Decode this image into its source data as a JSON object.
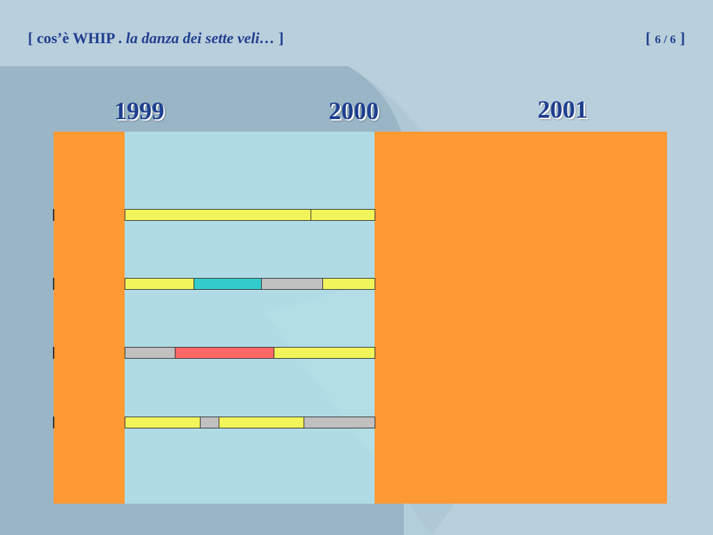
{
  "header": {
    "title_open": "[ cos’è WHIP . ",
    "title_italic": "la danza dei sette veli… ",
    "title_close": "]",
    "pager_open": "[",
    "pager_value": "6 / 6",
    "pager_close": "]"
  },
  "years": [
    "1999",
    "2000",
    "2001"
  ],
  "colors": {
    "orange": "#ff9933",
    "light_panel": "#b2dee6",
    "yellow": "#f2f55a",
    "cyan": "#33cccc",
    "gray": "#c0c0c0",
    "red": "#ff6666",
    "title": "#1f3f8f"
  },
  "tracks": [
    {
      "segments": [
        {
          "color": "yellow",
          "span": 0.745
        },
        {
          "color": "yellow",
          "span": 0.255
        }
      ]
    },
    {
      "segments": [
        {
          "color": "yellow",
          "span": 0.275
        },
        {
          "color": "cyan",
          "span": 0.27
        },
        {
          "color": "gray",
          "span": 0.245
        },
        {
          "color": "yellow",
          "span": 0.21
        }
      ]
    },
    {
      "segments": [
        {
          "color": "gray",
          "span": 0.2
        },
        {
          "color": "red",
          "span": 0.395
        },
        {
          "color": "yellow",
          "span": 0.405
        }
      ]
    },
    {
      "segments": [
        {
          "color": "yellow",
          "span": 0.3
        },
        {
          "color": "gray",
          "span": 0.075
        },
        {
          "color": "yellow",
          "span": 0.34
        },
        {
          "color": "gray",
          "span": 0.285
        }
      ]
    }
  ]
}
